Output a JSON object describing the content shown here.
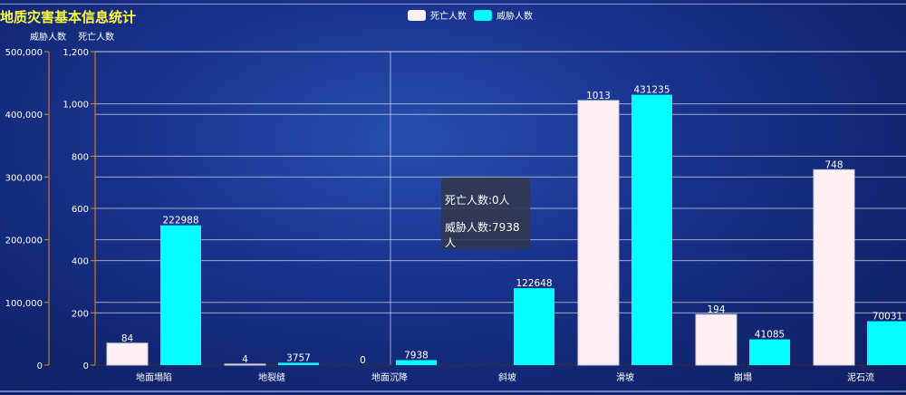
{
  "title": "地质灾害基本信息统计",
  "legend": [
    {
      "name": "死亡人数",
      "color": "#fff0f5"
    },
    {
      "name": "威胁人数",
      "color": "#00ffff"
    }
  ],
  "tooltip": {
    "line1": "死亡人数:0人",
    "line2": "威胁人数:7938人"
  },
  "chart_data": {
    "type": "bar",
    "categories": [
      "地面塌陷",
      "地裂缝",
      "地面沉降",
      "斜坡",
      "滑坡",
      "崩塌",
      "泥石流"
    ],
    "series": [
      {
        "name": "死亡人数",
        "axis": "inner",
        "color": "#fff0f5",
        "values": [
          84,
          4,
          0,
          null,
          1013,
          194,
          748
        ]
      },
      {
        "name": "威胁人数",
        "axis": "outer",
        "color": "#00ffff",
        "values": [
          222988,
          3757,
          7938,
          122648,
          431235,
          41085,
          70031
        ]
      }
    ],
    "y_axes": [
      {
        "name": "威胁人数",
        "range": [
          0,
          500000
        ],
        "ticks": [
          "0",
          "100,000",
          "200,000",
          "300,000",
          "400,000",
          "500,000"
        ],
        "axis_color": "#e0892a"
      },
      {
        "name": "死亡人数",
        "range": [
          0,
          1200
        ],
        "ticks": [
          "0",
          "200",
          "400",
          "600",
          "800",
          "1,000",
          "1,200"
        ],
        "axis_color": "#e0892a"
      }
    ],
    "grid": true,
    "legend_position": "top-center"
  }
}
